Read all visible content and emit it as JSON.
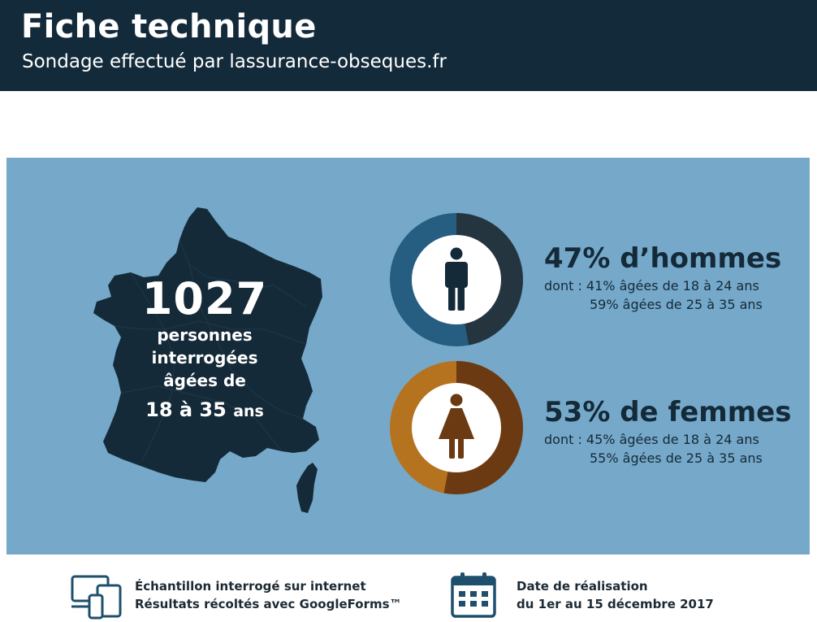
{
  "header": {
    "title": "Fiche technique",
    "subtitle": "Sondage effectué par lassurance-obseques.fr"
  },
  "map_block": {
    "count": "1027",
    "line1": "personnes",
    "line2": "interrogées",
    "line3": "âgées de",
    "age_range_numbers": "18 à 35",
    "age_range_unit": "ans"
  },
  "men": {
    "percent": 47,
    "title": "47% d’hommes",
    "line1": "dont : 41% âgées de 18 à 24 ans",
    "line2": "59% âgées de 25 à 35 ans",
    "icon": "man-icon",
    "colors": {
      "segment": "#253540",
      "rest": "#255e80"
    }
  },
  "women": {
    "percent": 53,
    "title": "53% de femmes",
    "line1": "dont : 45% âgées de 18 à 24 ans",
    "line2": "55% âgées de 25 à 35 ans",
    "icon": "woman-icon",
    "colors": {
      "segment": "#6b3a12",
      "rest": "#b5721f"
    }
  },
  "footer": {
    "left_icon": "devices-icon",
    "left_line1": "Échantillon interrogé sur internet",
    "left_line2": "Résultats récoltés avec GoogleForms™",
    "right_icon": "calendar-icon",
    "right_line1": "Date de réalisation",
    "right_line2": "du 1er au 15 décembre 2017"
  },
  "colors": {
    "header_bg": "#132a3a",
    "panel_bg": "#75a8c9",
    "map": "#142a38",
    "icon_dark": "#1e4f6d"
  }
}
